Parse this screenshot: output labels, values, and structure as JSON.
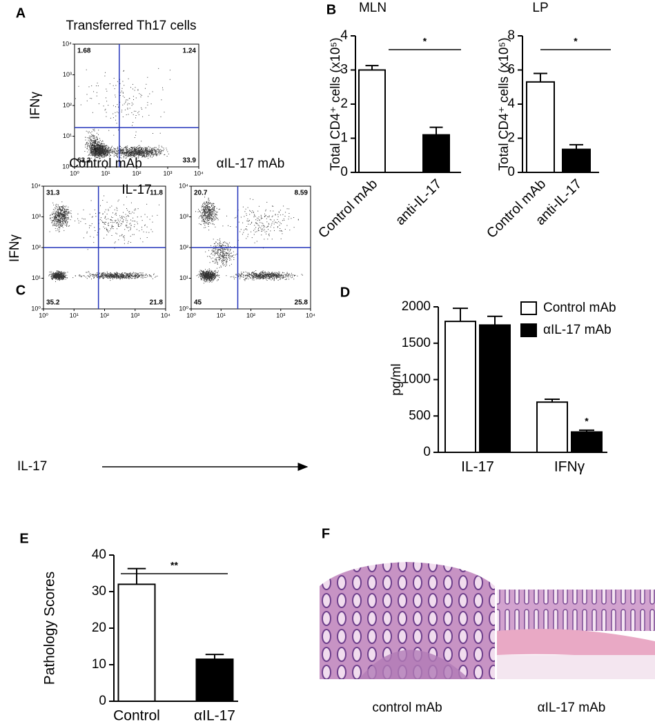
{
  "panel_labels": [
    "A",
    "B",
    "C",
    "D",
    "E",
    "F"
  ],
  "flow_plots": [
    {
      "title": "Transferred Th17 cells",
      "xlabel": "IL-17",
      "ylabel": "IFNγ",
      "log_scale": true,
      "xlim": [
        1,
        10000
      ],
      "ylim": [
        1,
        10000
      ],
      "xticks": [
        {
          "value": 1,
          "label": "10⁰"
        },
        {
          "value": 10,
          "label": "10¹"
        },
        {
          "value": 100,
          "label": "10²"
        },
        {
          "value": 1000,
          "label": "10³"
        },
        {
          "value": 10000,
          "label": "10⁴"
        }
      ],
      "yticks": [
        {
          "value": 1,
          "label": "10⁰"
        },
        {
          "value": 10,
          "label": "10¹"
        },
        {
          "value": 100,
          "label": "10²"
        },
        {
          "value": 1000,
          "label": "10³"
        },
        {
          "value": 10000,
          "label": "10⁴"
        }
      ],
      "quadrants": [
        1.68,
        1.24,
        63.2,
        33.9
      ],
      "color": "#2233bb"
    },
    {
      "title": "Control mAb",
      "xlabel": "IL-17",
      "ylabel": "IFNγ",
      "log_scale": true,
      "xlim": [
        1,
        10000
      ],
      "ylim": [
        1,
        10000
      ],
      "xticks": [
        {
          "value": 1,
          "label": "10⁰"
        },
        {
          "value": 10,
          "label": "10¹"
        },
        {
          "value": 100,
          "label": "10²"
        },
        {
          "value": 1000,
          "label": "10³"
        },
        {
          "value": 10000,
          "label": "10⁴"
        }
      ],
      "yticks": [
        {
          "value": 1,
          "label": "10⁰"
        },
        {
          "value": 10,
          "label": "10¹"
        },
        {
          "value": 100,
          "label": "10²"
        },
        {
          "value": 1000,
          "label": "10³"
        },
        {
          "value": 10000,
          "label": "10⁴"
        }
      ],
      "quadrants": [
        31.3,
        11.8,
        35.2,
        21.8
      ],
      "color": "#2233bb"
    },
    {
      "title": "αIL-17 mAb",
      "log_scale": true,
      "xlim": [
        1,
        10000
      ],
      "ylim": [
        1,
        10000
      ],
      "xticks": [
        {
          "value": 1,
          "label": "10⁰"
        },
        {
          "value": 10,
          "label": "10¹"
        },
        {
          "value": 100,
          "label": "10²"
        },
        {
          "value": 1000,
          "label": "10³"
        },
        {
          "value": 10000,
          "label": "10⁴"
        }
      ],
      "yticks": [
        {
          "value": 1,
          "label": "10⁰"
        },
        {
          "value": 10,
          "label": "10¹"
        },
        {
          "value": 100,
          "label": "10²"
        },
        {
          "value": 1000,
          "label": "10³"
        },
        {
          "value": 10000,
          "label": "10⁴"
        }
      ],
      "quadrants": [
        20.7,
        8.59,
        45,
        25.8
      ],
      "color": "#2233bb"
    }
  ],
  "chart_data": [
    {
      "type": "bar",
      "title": "MLN",
      "ylabel": "Total CD4⁺ cells (x10⁵)",
      "categories": [
        "Control mAb",
        "anti-IL-17"
      ],
      "values": [
        3.0,
        1.1
      ],
      "errors": [
        0.13,
        0.22
      ],
      "colors": [
        "#ffffff",
        "#000000"
      ],
      "ylim": [
        0,
        4
      ],
      "yticks": [
        0,
        1,
        2,
        3,
        4
      ],
      "annotation": "*"
    },
    {
      "type": "bar",
      "title": "LP",
      "ylabel": "Total CD4⁺ cells (x10⁵)",
      "categories": [
        "Control mAb",
        "anti-IL-17"
      ],
      "values": [
        5.3,
        1.35
      ],
      "errors": [
        0.5,
        0.27
      ],
      "colors": [
        "#ffffff",
        "#000000"
      ],
      "ylim": [
        0,
        8
      ],
      "yticks": [
        0,
        2,
        4,
        6,
        8
      ],
      "annotation": "*"
    },
    {
      "type": "grouped_bar",
      "ylabel": "pg/ml",
      "categories": [
        "IL-17",
        "IFNγ"
      ],
      "series": [
        {
          "name": "Control mAb",
          "color": "#ffffff",
          "values": [
            1800,
            690
          ],
          "errors": [
            180,
            40
          ]
        },
        {
          "name": "αIL-17 mAb",
          "color": "#000000",
          "values": [
            1750,
            280
          ],
          "errors": [
            120,
            25
          ]
        }
      ],
      "ylim": [
        0,
        2000
      ],
      "yticks": [
        0,
        500,
        1000,
        1500,
        2000
      ],
      "legend": "top-right",
      "annotation": "*"
    },
    {
      "type": "bar",
      "ylabel": "Pathology Scores",
      "categories": [
        "Control",
        "αIL-17"
      ],
      "values": [
        32,
        11.5
      ],
      "errors": [
        4.3,
        1.3
      ],
      "colors": [
        "#ffffff",
        "#000000"
      ],
      "ylim": [
        0,
        40
      ],
      "yticks": [
        0,
        10,
        20,
        30,
        40
      ],
      "annotation": "**"
    }
  ],
  "histology": {
    "labels": [
      "control mAb",
      "αIL-17 mAb"
    ]
  }
}
